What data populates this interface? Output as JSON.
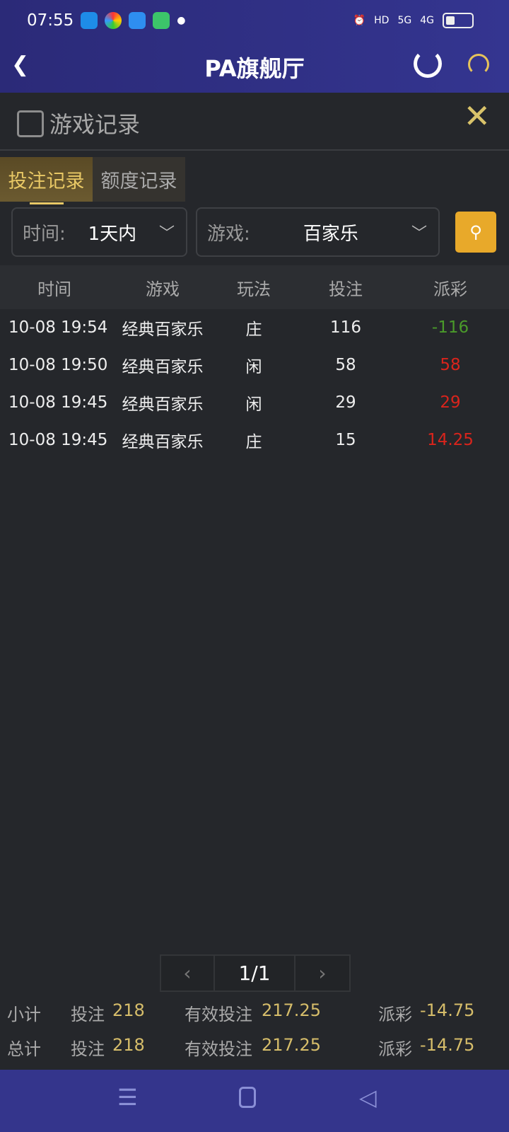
{
  "status": {
    "time": "07:55",
    "indicators": [
      "alarm-icon",
      "HD",
      "5G",
      "4G"
    ],
    "battery_level": 0.3
  },
  "header": {
    "title": "PA旗舰厅",
    "back_icon": "chevron-left-icon",
    "refresh_icon": "refresh-icon",
    "support_icon": "headset-icon"
  },
  "section": {
    "title": "游戏记录",
    "close_icon": "close-icon"
  },
  "tabs": [
    {
      "label": "投注记录",
      "active": true
    },
    {
      "label": "额度记录",
      "active": false
    }
  ],
  "filters": {
    "time": {
      "label": "时间:",
      "value": "1天内"
    },
    "game": {
      "label": "游戏:",
      "value": "百家乐"
    }
  },
  "table": {
    "headers": [
      "时间",
      "游戏",
      "玩法",
      "投注",
      "派彩"
    ],
    "rows": [
      {
        "time": "10-08 19:54",
        "game": "经典百家乐",
        "play": "庄",
        "bet": "116",
        "payout": "-116",
        "color": "#4a9a2a"
      },
      {
        "time": "10-08 19:50",
        "game": "经典百家乐",
        "play": "闲",
        "bet": "58",
        "payout": "58",
        "color": "#d9241c"
      },
      {
        "time": "10-08 19:45",
        "game": "经典百家乐",
        "play": "闲",
        "bet": "29",
        "payout": "29",
        "color": "#d9241c"
      },
      {
        "time": "10-08 19:45",
        "game": "经典百家乐",
        "play": "庄",
        "bet": "15",
        "payout": "14.25",
        "color": "#d9241c"
      }
    ]
  },
  "pagination": {
    "prev": "‹",
    "page": "1/1",
    "next": "›"
  },
  "summary": [
    {
      "label": "小计",
      "bet_label": "投注",
      "bet": "218",
      "valid_label": "有效投注",
      "valid": "217.25",
      "payout_label": "派彩",
      "payout": "-14.75"
    },
    {
      "label": "总计",
      "bet_label": "投注",
      "bet": "218",
      "valid_label": "有效投注",
      "valid": "217.25",
      "payout_label": "派彩",
      "payout": "-14.75"
    }
  ],
  "colors": {
    "accent": "#e8a92a",
    "gold": "#d6bd6a",
    "header": "#2f2f84"
  }
}
